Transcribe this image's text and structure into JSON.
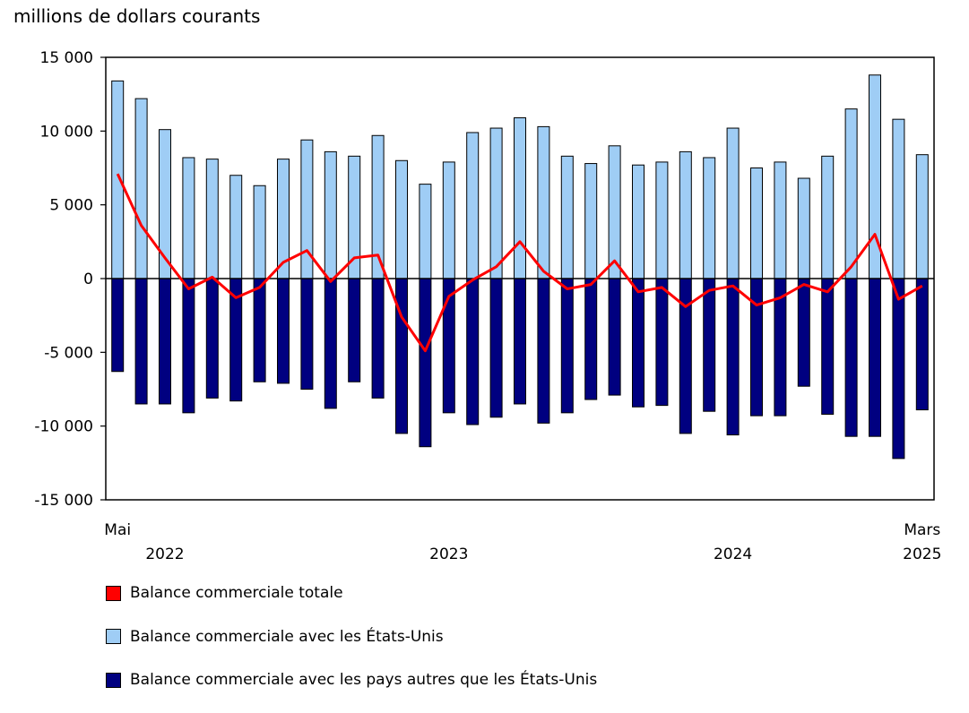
{
  "chart_data": {
    "type": "bar",
    "title": "",
    "ylabel": "millions de dollars courants",
    "xlabel": "",
    "ylim": [
      -15000,
      15000
    ],
    "yticks": [
      15000,
      10000,
      5000,
      0,
      -5000,
      -10000,
      -15000
    ],
    "ytick_labels": [
      "15 000",
      "10 000",
      "5 000",
      "0",
      "-5 000",
      "-10 000",
      "-15 000"
    ],
    "x_start_label": "Mai",
    "x_end_label": "Mars",
    "year_labels": [
      {
        "label": "2022",
        "at_index": 2
      },
      {
        "label": "2023",
        "at_index": 14
      },
      {
        "label": "2024",
        "at_index": 26
      },
      {
        "label": "2025",
        "at_index": 34
      }
    ],
    "categories": [
      "2022-05",
      "2022-06",
      "2022-07",
      "2022-08",
      "2022-09",
      "2022-10",
      "2022-11",
      "2022-12",
      "2023-01",
      "2023-02",
      "2023-03",
      "2023-04",
      "2023-05",
      "2023-06",
      "2023-07",
      "2023-08",
      "2023-09",
      "2023-10",
      "2023-11",
      "2023-12",
      "2024-01",
      "2024-02",
      "2024-03",
      "2024-04",
      "2024-05",
      "2024-06",
      "2024-07",
      "2024-08",
      "2024-09",
      "2024-10",
      "2024-11",
      "2024-12",
      "2025-01",
      "2025-02",
      "2025-03"
    ],
    "series": [
      {
        "name": "Balance commerciale avec les États-Unis",
        "type": "bar",
        "color": "#9fcdf5",
        "values": [
          13400,
          12200,
          10100,
          8200,
          8100,
          7000,
          6300,
          8100,
          9400,
          8600,
          8300,
          9700,
          8000,
          6400,
          7900,
          9900,
          10200,
          10900,
          10300,
          8300,
          7800,
          9000,
          7700,
          7900,
          8600,
          8200,
          10200,
          7500,
          7900,
          6800,
          8300,
          11500,
          13800,
          10800,
          8400
        ]
      },
      {
        "name": "Balance commerciale avec les pays autres que les États-Unis",
        "type": "bar",
        "color": "#000080",
        "values": [
          -6300,
          -8500,
          -8500,
          -9100,
          -8100,
          -8300,
          -7000,
          -7100,
          -7500,
          -8800,
          -7000,
          -8100,
          -10500,
          -11400,
          -9100,
          -9900,
          -9400,
          -8500,
          -9800,
          -9100,
          -8200,
          -7900,
          -8700,
          -8600,
          -10500,
          -9000,
          -10600,
          -9300,
          -9300,
          -7300,
          -9200,
          -10700,
          -10700,
          -12200,
          -8900
        ]
      },
      {
        "name": "Balance commerciale totale",
        "type": "line",
        "color": "#ff0000",
        "values": [
          7100,
          3600,
          1400,
          -700,
          100,
          -1300,
          -600,
          1100,
          1900,
          -200,
          1400,
          1600,
          -2600,
          -4900,
          -1200,
          -100,
          800,
          2500,
          500,
          -700,
          -400,
          1200,
          -900,
          -600,
          -1900,
          -800,
          -500,
          -1800,
          -1300,
          -400,
          -900,
          800,
          3000,
          -1400,
          -500
        ]
      }
    ]
  }
}
